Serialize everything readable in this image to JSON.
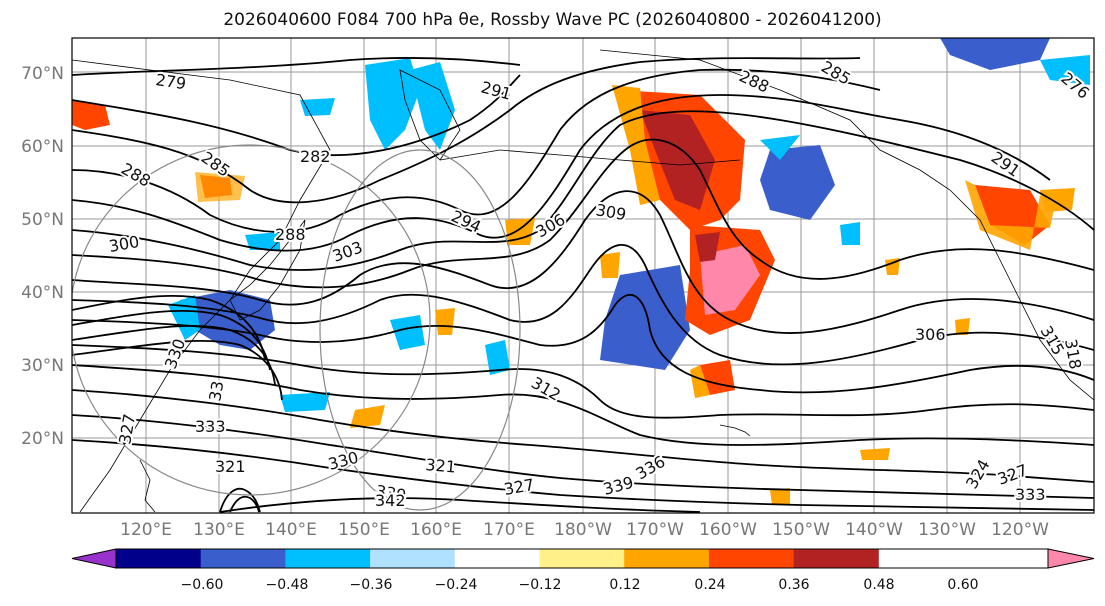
{
  "title": "2026040600 F084 700 hPa θe, Rossby Wave PC (2026040800 - 2026041200)",
  "latitude_labels": [
    "70°N",
    "60°N",
    "50°N",
    "40°N",
    "30°N",
    "20°N"
  ],
  "longitude_labels": [
    "120°E",
    "130°E",
    "140°E",
    "150°E",
    "160°E",
    "170°E",
    "180°W",
    "170°W",
    "160°W",
    "150°W",
    "140°W",
    "130°W",
    "120°W"
  ],
  "colorbar": {
    "tick_labels": [
      "−0.60",
      "−0.48",
      "−0.36",
      "−0.24",
      "−0.12",
      "0.12",
      "0.24",
      "0.36",
      "0.48",
      "0.60"
    ],
    "colors": [
      "#9932cc",
      "#00008b",
      "#3a5fcd",
      "#00bfff",
      "#b0e2ff",
      "#ffffff",
      "#fff08a",
      "#ffa500",
      "#ff4500",
      "#b22222",
      "#ff88aa"
    ]
  },
  "contour_labels": [
    {
      "text": "279"
    },
    {
      "text": "291"
    },
    {
      "text": "288"
    },
    {
      "text": "285"
    },
    {
      "text": "285"
    },
    {
      "text": "282"
    },
    {
      "text": "288"
    },
    {
      "text": "291"
    },
    {
      "text": "294"
    },
    {
      "text": "309"
    },
    {
      "text": "300"
    },
    {
      "text": "303"
    },
    {
      "text": "288"
    },
    {
      "text": "306"
    },
    {
      "text": "312"
    },
    {
      "text": "306"
    },
    {
      "text": "333"
    },
    {
      "text": "321"
    },
    {
      "text": "330"
    },
    {
      "text": "321"
    },
    {
      "text": "339"
    },
    {
      "text": "342"
    },
    {
      "text": "327"
    },
    {
      "text": "339"
    },
    {
      "text": "336"
    },
    {
      "text": "324"
    },
    {
      "text": "327"
    },
    {
      "text": "333"
    },
    {
      "text": "318"
    },
    {
      "text": "315"
    },
    {
      "text": "330"
    },
    {
      "text": "327"
    },
    {
      "text": "33"
    },
    {
      "text": "276"
    }
  ]
}
